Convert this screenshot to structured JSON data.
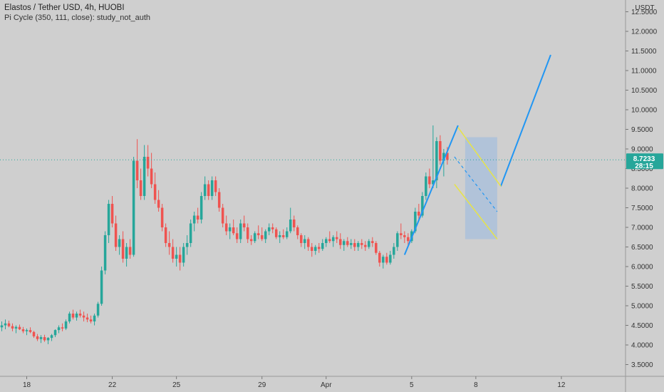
{
  "header": {
    "title": "Elastos / Tether USD, 4h, HUOBI",
    "study": "Pi Cycle (350, 111, close): study_not_auth"
  },
  "axis": {
    "currency": "USDT",
    "last_price": "8.7233",
    "countdown": "28:15"
  },
  "colors": {
    "background": "#cfcfcf",
    "up": "#26a69a",
    "down": "#ef5350",
    "trend_line": "#2196f3",
    "channel": "#e6e34a",
    "channel_fill": "#a7bfdc",
    "price_badge": "#26a69a"
  },
  "chart_data": {
    "type": "candlestick",
    "interval": "4h",
    "y_ticks": [
      "3.5000",
      "4.0000",
      "4.5000",
      "5.0000",
      "5.5000",
      "6.0000",
      "6.5000",
      "7.0000",
      "7.5000",
      "8.0000",
      "8.5000",
      "9.0000",
      "9.5000",
      "10.0000",
      "10.5000",
      "11.0000",
      "11.5000",
      "12.0000",
      "12.5000"
    ],
    "ylim": [
      3.2,
      12.8
    ],
    "x_ticks": [
      {
        "label": "18",
        "index": 7
      },
      {
        "label": "22",
        "index": 31
      },
      {
        "label": "25",
        "index": 49
      },
      {
        "label": "29",
        "index": 73
      },
      {
        "label": "Apr",
        "index": 91
      },
      {
        "label": "5",
        "index": 115
      },
      {
        "label": "8",
        "index": 133
      },
      {
        "label": "12",
        "index": 157
      }
    ],
    "x_range": [
      -0.5,
      175
    ],
    "last_price": 8.7233,
    "candles": [
      [
        4.45,
        4.6,
        4.35,
        4.5
      ],
      [
        4.5,
        4.65,
        4.4,
        4.55
      ],
      [
        4.55,
        4.62,
        4.45,
        4.48
      ],
      [
        4.48,
        4.55,
        4.35,
        4.42
      ],
      [
        4.42,
        4.5,
        4.3,
        4.46
      ],
      [
        4.46,
        4.52,
        4.38,
        4.4
      ],
      [
        4.4,
        4.46,
        4.3,
        4.35
      ],
      [
        4.35,
        4.42,
        4.25,
        4.38
      ],
      [
        4.38,
        4.45,
        4.3,
        4.33
      ],
      [
        4.33,
        4.36,
        4.18,
        4.22
      ],
      [
        4.22,
        4.28,
        4.1,
        4.15
      ],
      [
        4.15,
        4.25,
        4.05,
        4.2
      ],
      [
        4.2,
        4.26,
        4.08,
        4.12
      ],
      [
        4.12,
        4.2,
        4.02,
        4.18
      ],
      [
        4.18,
        4.28,
        4.1,
        4.25
      ],
      [
        4.25,
        4.4,
        4.2,
        4.38
      ],
      [
        4.38,
        4.5,
        4.3,
        4.45
      ],
      [
        4.45,
        4.55,
        4.35,
        4.42
      ],
      [
        4.42,
        4.65,
        4.38,
        4.6
      ],
      [
        4.6,
        4.85,
        4.55,
        4.8
      ],
      [
        4.8,
        4.9,
        4.65,
        4.7
      ],
      [
        4.7,
        4.85,
        4.62,
        4.8
      ],
      [
        4.8,
        4.9,
        4.7,
        4.75
      ],
      [
        4.75,
        4.85,
        4.6,
        4.7
      ],
      [
        4.7,
        4.8,
        4.58,
        4.65
      ],
      [
        4.65,
        4.75,
        4.55,
        4.6
      ],
      [
        4.6,
        4.8,
        4.5,
        4.75
      ],
      [
        4.75,
        5.1,
        4.7,
        5.05
      ],
      [
        5.05,
        6.0,
        5.0,
        5.9
      ],
      [
        5.9,
        6.9,
        5.8,
        6.8
      ],
      [
        6.8,
        7.7,
        6.6,
        7.6
      ],
      [
        7.6,
        7.8,
        7.0,
        7.1
      ],
      [
        7.1,
        7.3,
        6.4,
        6.5
      ],
      [
        6.5,
        6.8,
        6.3,
        6.7
      ],
      [
        6.7,
        6.9,
        6.1,
        6.2
      ],
      [
        6.2,
        6.6,
        6.0,
        6.5
      ],
      [
        6.5,
        6.7,
        6.2,
        6.3
      ],
      [
        6.3,
        8.8,
        6.25,
        8.7
      ],
      [
        8.7,
        9.25,
        8.0,
        8.2
      ],
      [
        8.2,
        8.5,
        7.7,
        7.8
      ],
      [
        7.8,
        9.1,
        7.7,
        8.8
      ],
      [
        8.8,
        9.1,
        8.3,
        8.5
      ],
      [
        8.5,
        8.9,
        8.0,
        8.1
      ],
      [
        8.1,
        8.4,
        7.6,
        7.7
      ],
      [
        7.7,
        7.95,
        7.4,
        7.5
      ],
      [
        7.5,
        7.6,
        6.9,
        7.0
      ],
      [
        7.0,
        7.1,
        6.5,
        6.6
      ],
      [
        6.6,
        6.9,
        6.3,
        6.5
      ],
      [
        6.5,
        6.7,
        6.1,
        6.2
      ],
      [
        6.2,
        6.5,
        6.0,
        6.3
      ],
      [
        6.3,
        6.5,
        5.9,
        6.1
      ],
      [
        6.1,
        6.6,
        6.0,
        6.5
      ],
      [
        6.5,
        6.8,
        6.3,
        6.6
      ],
      [
        6.6,
        7.2,
        6.5,
        7.1
      ],
      [
        7.1,
        7.4,
        6.9,
        7.3
      ],
      [
        7.3,
        7.5,
        7.1,
        7.2
      ],
      [
        7.2,
        7.9,
        7.1,
        7.8
      ],
      [
        7.8,
        8.3,
        7.7,
        8.1
      ],
      [
        8.1,
        8.2,
        7.7,
        7.8
      ],
      [
        7.8,
        8.3,
        7.7,
        8.2
      ],
      [
        8.2,
        8.3,
        7.8,
        7.9
      ],
      [
        7.9,
        8.0,
        7.4,
        7.5
      ],
      [
        7.5,
        7.6,
        7.0,
        7.1
      ],
      [
        7.1,
        7.3,
        6.8,
        6.9
      ],
      [
        6.9,
        7.1,
        6.7,
        7.0
      ],
      [
        7.0,
        7.2,
        6.8,
        6.85
      ],
      [
        6.85,
        7.0,
        6.6,
        6.7
      ],
      [
        6.7,
        7.2,
        6.6,
        7.1
      ],
      [
        7.1,
        7.3,
        6.9,
        7.0
      ],
      [
        7.0,
        7.1,
        6.6,
        6.7
      ],
      [
        6.7,
        6.8,
        6.55,
        6.65
      ],
      [
        6.65,
        6.9,
        6.6,
        6.85
      ],
      [
        6.85,
        7.05,
        6.7,
        6.8
      ],
      [
        6.8,
        7.0,
        6.65,
        6.7
      ],
      [
        6.7,
        6.95,
        6.6,
        6.9
      ],
      [
        6.9,
        7.1,
        6.8,
        7.0
      ],
      [
        7.0,
        7.1,
        6.85,
        6.95
      ],
      [
        6.95,
        7.0,
        6.7,
        6.75
      ],
      [
        6.75,
        6.9,
        6.6,
        6.8
      ],
      [
        6.8,
        6.95,
        6.7,
        6.75
      ],
      [
        6.75,
        7.0,
        6.7,
        6.9
      ],
      [
        6.9,
        7.5,
        6.85,
        7.2
      ],
      [
        7.2,
        7.3,
        6.9,
        7.0
      ],
      [
        7.0,
        7.05,
        6.7,
        6.8
      ],
      [
        6.8,
        6.85,
        6.5,
        6.6
      ],
      [
        6.6,
        6.8,
        6.45,
        6.7
      ],
      [
        6.7,
        6.75,
        6.4,
        6.5
      ],
      [
        6.5,
        6.6,
        6.25,
        6.4
      ],
      [
        6.4,
        6.55,
        6.3,
        6.5
      ],
      [
        6.5,
        6.6,
        6.35,
        6.45
      ],
      [
        6.45,
        6.7,
        6.4,
        6.6
      ],
      [
        6.6,
        6.75,
        6.5,
        6.7
      ],
      [
        6.7,
        6.9,
        6.6,
        6.65
      ],
      [
        6.65,
        6.8,
        6.5,
        6.75
      ],
      [
        6.75,
        6.9,
        6.6,
        6.7
      ],
      [
        6.7,
        6.85,
        6.45,
        6.55
      ],
      [
        6.55,
        6.7,
        6.4,
        6.65
      ],
      [
        6.65,
        6.75,
        6.5,
        6.55
      ],
      [
        6.55,
        6.7,
        6.45,
        6.6
      ],
      [
        6.6,
        6.7,
        6.4,
        6.5
      ],
      [
        6.5,
        6.65,
        6.4,
        6.6
      ],
      [
        6.6,
        6.7,
        6.45,
        6.55
      ],
      [
        6.55,
        6.65,
        6.4,
        6.5
      ],
      [
        6.5,
        6.7,
        6.45,
        6.65
      ],
      [
        6.65,
        6.75,
        6.5,
        6.6
      ],
      [
        6.6,
        6.65,
        6.3,
        6.35
      ],
      [
        6.35,
        6.4,
        6.0,
        6.1
      ],
      [
        6.1,
        6.3,
        5.95,
        6.25
      ],
      [
        6.25,
        6.35,
        6.05,
        6.1
      ],
      [
        6.1,
        6.4,
        6.05,
        6.3
      ],
      [
        6.3,
        6.6,
        6.2,
        6.5
      ],
      [
        6.5,
        6.9,
        6.4,
        6.85
      ],
      [
        6.85,
        7.1,
        6.7,
        6.8
      ],
      [
        6.8,
        6.9,
        6.6,
        6.75
      ],
      [
        6.75,
        6.85,
        6.55,
        6.65
      ],
      [
        6.65,
        6.95,
        6.6,
        6.9
      ],
      [
        6.9,
        7.5,
        6.85,
        7.4
      ],
      [
        7.4,
        7.6,
        7.2,
        7.3
      ],
      [
        7.3,
        7.9,
        7.25,
        7.8
      ],
      [
        7.8,
        8.4,
        7.7,
        8.3
      ],
      [
        8.3,
        8.5,
        8.0,
        8.1
      ],
      [
        8.1,
        9.6,
        8.0,
        8.2
      ],
      [
        8.2,
        9.3,
        8.0,
        9.2
      ],
      [
        9.2,
        9.35,
        8.6,
        8.7
      ],
      [
        8.7,
        9.0,
        8.3,
        8.9
      ],
      [
        8.9,
        9.05,
        8.6,
        8.72
      ]
    ],
    "lines": [
      {
        "name": "impulse",
        "role": "trend",
        "points": [
          [
            113,
            6.3
          ],
          [
            128,
            9.6
          ]
        ]
      },
      {
        "name": "projection",
        "role": "trend",
        "points": [
          [
            140,
            8.05
          ],
          [
            154,
            11.4
          ]
        ]
      },
      {
        "name": "channel-top",
        "role": "channel",
        "points": [
          [
            128,
            9.55
          ],
          [
            140,
            8.05
          ]
        ]
      },
      {
        "name": "channel-bottom",
        "role": "channel",
        "points": [
          [
            127,
            8.1
          ],
          [
            139,
            6.7
          ]
        ]
      },
      {
        "name": "channel-mid",
        "role": "mid",
        "points": [
          [
            127,
            8.8
          ],
          [
            139,
            7.4
          ]
        ]
      }
    ],
    "channel_box": [
      [
        130,
        9.3
      ],
      [
        139,
        6.7
      ]
    ]
  }
}
